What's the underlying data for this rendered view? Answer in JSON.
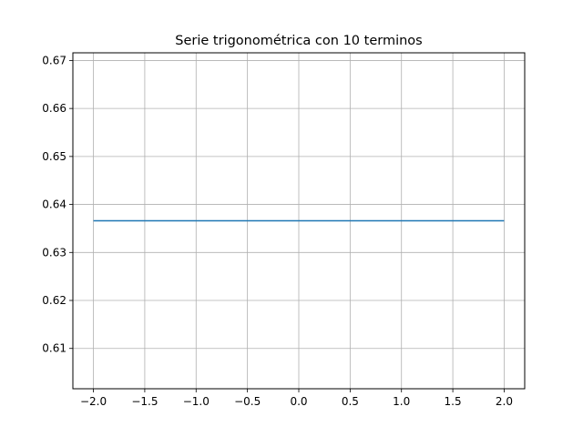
{
  "chart_data": {
    "type": "line",
    "title": "Serie trigonométrica con 10 terminos",
    "xlabel": "",
    "ylabel": "",
    "xlim": [
      -2.2,
      2.2
    ],
    "ylim": [
      0.6016,
      0.6716
    ],
    "xticks": [
      -2.0,
      -1.5,
      -1.0,
      -0.5,
      0.0,
      0.5,
      1.0,
      1.5,
      2.0
    ],
    "xtick_labels": [
      "−2.0",
      "−1.5",
      "−1.0",
      "−0.5",
      "0.0",
      "0.5",
      "1.0",
      "1.5",
      "2.0"
    ],
    "yticks": [
      0.61,
      0.62,
      0.63,
      0.64,
      0.65,
      0.66,
      0.67
    ],
    "ytick_labels": [
      "0.61",
      "0.62",
      "0.63",
      "0.64",
      "0.65",
      "0.66",
      "0.67"
    ],
    "grid": true,
    "series": [
      {
        "color": "#1f77b4",
        "x": [
          -2.0,
          2.0
        ],
        "y": [
          0.6366,
          0.6366
        ]
      }
    ]
  }
}
